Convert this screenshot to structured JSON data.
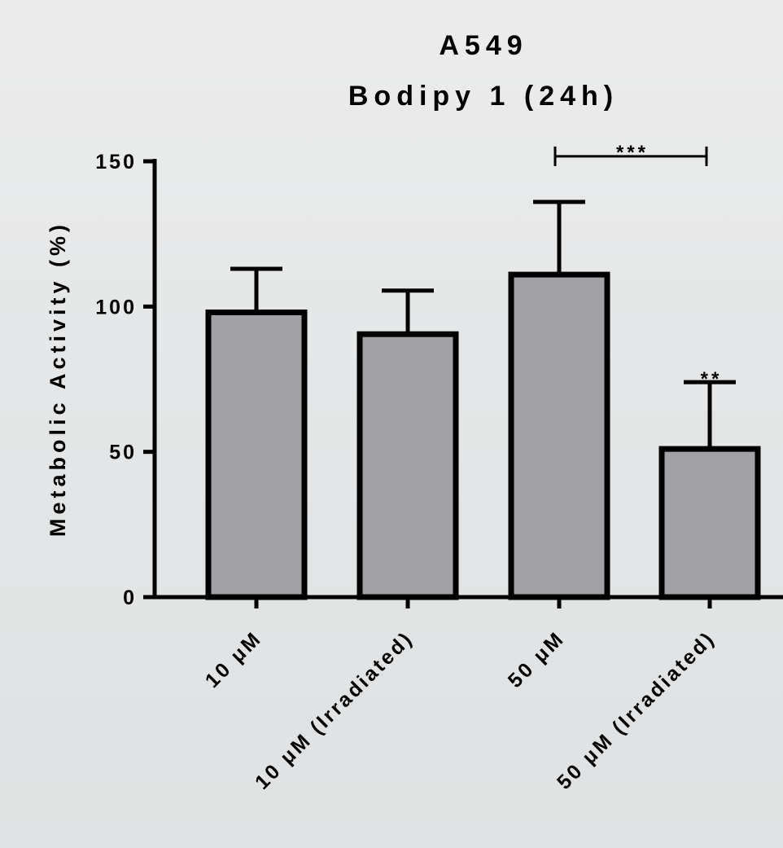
{
  "chart_data": {
    "type": "bar",
    "title": "A549",
    "subtitle": "Bodipy 1 (24h)",
    "ylabel": "Metabolic Activity (%)",
    "xlabel": "",
    "ylim": [
      0,
      150
    ],
    "yticks": [
      0,
      50,
      100,
      150
    ],
    "grid": false,
    "legend": "none",
    "bar_color": "#a2a1a6",
    "edge_color": "#000000",
    "categories": [
      "10 μM",
      "10 μM (Irradiated)",
      "50 μM",
      "50 μM (Irradiated)"
    ],
    "values": [
      98,
      90.5,
      111,
      51
    ],
    "errors": [
      15,
      15,
      25,
      23
    ],
    "annotations": [
      {
        "label": "**",
        "category_index": 3
      }
    ],
    "brackets": [
      {
        "label": "***",
        "from_index": 2,
        "to_index": 3,
        "y": 152
      }
    ]
  }
}
